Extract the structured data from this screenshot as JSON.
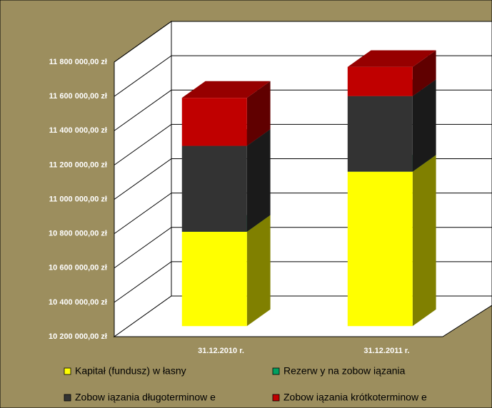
{
  "chart_data": {
    "type": "bar3d_stacked",
    "categories": [
      "31.12.2010 r.",
      "31.12.2011 r."
    ],
    "series": [
      {
        "name": "Kapitał (fundusz) w łasny",
        "color": "#ffff00",
        "values": [
          10750000,
          11100000
        ]
      },
      {
        "name": "Rezerw y na zobow iązania",
        "color": "#00a060",
        "values": [
          0,
          0
        ]
      },
      {
        "name": "Zobow iązania długoterminow e",
        "color": "#333333",
        "values": [
          500000,
          440000
        ]
      },
      {
        "name": "Zobow iązania krótkoterminow e",
        "color": "#c00000",
        "values": [
          280000,
          170000
        ]
      }
    ],
    "ylim": [
      10200000,
      11800000
    ],
    "yticks": [
      {
        "value": 10200000,
        "label": "10 200 000,00 zł"
      },
      {
        "value": 10400000,
        "label": "10 400 000,00 zł"
      },
      {
        "value": 10600000,
        "label": "10 600 000,00 zł"
      },
      {
        "value": 10800000,
        "label": "10 800 000,00 zł"
      },
      {
        "value": 11000000,
        "label": "11 000 000,00 zł"
      },
      {
        "value": 11200000,
        "label": "11 200 000,00 zł"
      },
      {
        "value": 11400000,
        "label": "11 400 000,00 zł"
      },
      {
        "value": 11600000,
        "label": "11 600 000,00 zł"
      },
      {
        "value": 11800000,
        "label": "11 800 000,00 zł"
      }
    ],
    "grid": true,
    "legend": "bottom"
  }
}
